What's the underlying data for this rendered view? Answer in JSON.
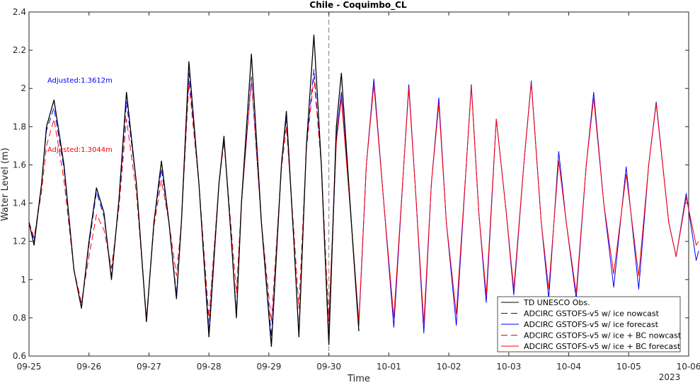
{
  "chart_data": {
    "type": "line",
    "title": "Chile - Coquimbo_CL",
    "xlabel": "Time",
    "ylabel": "Water Level (m)",
    "xlim": [
      "2023-09-25 00:00",
      "2023-10-06 00:00"
    ],
    "ylim": [
      0.6,
      2.4
    ],
    "x_ticks": [
      "09-25",
      "09-26",
      "09-27",
      "09-28",
      "09-29",
      "09-30",
      "10-01",
      "10-02",
      "10-03",
      "10-04",
      "10-05",
      "10-06"
    ],
    "y_ticks": [
      "0.6",
      "0.8",
      "1",
      "1.2",
      "1.4",
      "1.6",
      "1.8",
      "2",
      "2.2",
      "2.4"
    ],
    "year_label": "2023",
    "nowcast_end": "2023-09-30 00:00",
    "grid": false,
    "legend_position": "bottom-right",
    "annotations": [
      {
        "text": "Adjusted:1.3612m",
        "color": "#0000ff"
      },
      {
        "text": "Adjusted:1.3044m",
        "color": "#ff0000"
      }
    ],
    "series": [
      {
        "name": "TD UNESCO Obs.",
        "color": "#000000",
        "style": "solid",
        "points": [
          [
            "09-25 00:00",
            1.3
          ],
          [
            "09-25 02:00",
            1.18
          ],
          [
            "09-25 05:00",
            1.5
          ],
          [
            "09-25 07:00",
            1.8
          ],
          [
            "09-25 10:00",
            1.94
          ],
          [
            "09-25 14:00",
            1.6
          ],
          [
            "09-25 18:00",
            1.05
          ],
          [
            "09-25 21:00",
            0.85
          ],
          [
            "09-26 00:00",
            1.2
          ],
          [
            "09-26 03:00",
            1.48
          ],
          [
            "09-26 06:00",
            1.35
          ],
          [
            "09-26 09:00",
            1.0
          ],
          [
            "09-26 12:00",
            1.42
          ],
          [
            "09-26 15:00",
            1.98
          ],
          [
            "09-26 19:00",
            1.5
          ],
          [
            "09-26 23:00",
            0.78
          ],
          [
            "09-27 02:00",
            1.3
          ],
          [
            "09-27 05:00",
            1.62
          ],
          [
            "09-27 08:00",
            1.3
          ],
          [
            "09-27 11:00",
            0.9
          ],
          [
            "09-27 13:00",
            1.3
          ],
          [
            "09-27 16:00",
            2.14
          ],
          [
            "09-27 20:00",
            1.5
          ],
          [
            "09-28 00:00",
            0.7
          ],
          [
            "09-28 04:00",
            1.5
          ],
          [
            "09-28 06:00",
            1.75
          ],
          [
            "09-28 09:00",
            1.2
          ],
          [
            "09-28 11:00",
            0.8
          ],
          [
            "09-28 13:00",
            1.4
          ],
          [
            "09-28 17:00",
            2.18
          ],
          [
            "09-28 21:00",
            1.3
          ],
          [
            "09-29 01:00",
            0.65
          ],
          [
            "09-29 05:00",
            1.6
          ],
          [
            "09-29 07:00",
            1.88
          ],
          [
            "09-29 10:00",
            1.2
          ],
          [
            "09-29 12:00",
            0.7
          ],
          [
            "09-29 15:00",
            1.7
          ],
          [
            "09-29 18:00",
            2.28
          ],
          [
            "09-29 21:00",
            1.6
          ],
          [
            "09-30 00:00",
            0.66
          ],
          [
            "09-30 03:00",
            1.8
          ],
          [
            "09-30 05:00",
            2.08
          ],
          [
            "09-30 09:00",
            1.3
          ],
          [
            "09-30 12:00",
            0.73
          ]
        ]
      },
      {
        "name": "ADCIRC GSTOFS-v5 w/ ice nowcast",
        "color": "#0000ff",
        "style": "dashed",
        "points": [
          [
            "09-25 00:00",
            1.3
          ],
          [
            "09-25 02:00",
            1.2
          ],
          [
            "09-25 05:00",
            1.5
          ],
          [
            "09-25 07:00",
            1.78
          ],
          [
            "09-25 10:00",
            1.9
          ],
          [
            "09-25 14:00",
            1.58
          ],
          [
            "09-25 18:00",
            1.05
          ],
          [
            "09-25 21:00",
            0.86
          ],
          [
            "09-26 00:00",
            1.18
          ],
          [
            "09-26 03:00",
            1.46
          ],
          [
            "09-26 06:00",
            1.33
          ],
          [
            "09-26 09:00",
            1.02
          ],
          [
            "09-26 12:00",
            1.4
          ],
          [
            "09-26 15:00",
            1.93
          ],
          [
            "09-26 19:00",
            1.5
          ],
          [
            "09-26 23:00",
            0.78
          ],
          [
            "09-27 02:00",
            1.3
          ],
          [
            "09-27 05:00",
            1.58
          ],
          [
            "09-27 08:00",
            1.3
          ],
          [
            "09-27 11:00",
            0.92
          ],
          [
            "09-27 13:00",
            1.3
          ],
          [
            "09-27 16:00",
            2.08
          ],
          [
            "09-27 20:00",
            1.5
          ],
          [
            "09-28 00:00",
            0.74
          ],
          [
            "09-28 04:00",
            1.5
          ],
          [
            "09-28 06:00",
            1.74
          ],
          [
            "09-28 09:00",
            1.2
          ],
          [
            "09-28 11:00",
            0.82
          ],
          [
            "09-28 13:00",
            1.4
          ],
          [
            "09-28 17:00",
            2.06
          ],
          [
            "09-28 21:00",
            1.3
          ],
          [
            "09-29 01:00",
            0.7
          ],
          [
            "09-29 05:00",
            1.6
          ],
          [
            "09-29 07:00",
            1.85
          ],
          [
            "09-29 10:00",
            1.2
          ],
          [
            "09-29 12:00",
            0.72
          ],
          [
            "09-29 15:00",
            1.7
          ],
          [
            "09-29 18:00",
            2.1
          ],
          [
            "09-29 21:00",
            1.6
          ],
          [
            "09-30 00:00",
            0.68
          ]
        ]
      },
      {
        "name": "ADCIRC GSTOFS-v5 w/ ice forecast",
        "color": "#0000ff",
        "style": "solid",
        "points": [
          [
            "09-30 00:00",
            0.68
          ],
          [
            "09-30 03:00",
            1.75
          ],
          [
            "09-30 05:00",
            1.98
          ],
          [
            "09-30 09:00",
            1.3
          ],
          [
            "09-30 12:00",
            0.76
          ],
          [
            "09-30 15:00",
            1.6
          ],
          [
            "09-30 18:00",
            2.05
          ],
          [
            "09-30 22:00",
            1.4
          ],
          [
            "10-01 02:00",
            0.75
          ],
          [
            "10-01 06:00",
            1.6
          ],
          [
            "10-01 08:00",
            2.02
          ],
          [
            "10-01 11:00",
            1.4
          ],
          [
            "10-01 14:00",
            0.72
          ],
          [
            "10-01 17:00",
            1.5
          ],
          [
            "10-01 20:00",
            1.95
          ],
          [
            "10-01 23:00",
            1.3
          ],
          [
            "10-02 03:00",
            0.76
          ],
          [
            "10-02 07:00",
            1.6
          ],
          [
            "10-02 09:00",
            2.02
          ],
          [
            "10-02 12:00",
            1.35
          ],
          [
            "10-02 15:00",
            0.88
          ],
          [
            "10-02 19:00",
            1.84
          ],
          [
            "10-02 23:00",
            1.35
          ],
          [
            "10-03 02:00",
            0.92
          ],
          [
            "10-03 06:00",
            1.6
          ],
          [
            "10-03 09:00",
            2.04
          ],
          [
            "10-03 13:00",
            1.3
          ],
          [
            "10-03 16:00",
            0.9
          ],
          [
            "10-03 20:00",
            1.67
          ],
          [
            "10-03 23:00",
            1.3
          ],
          [
            "10-04 03:00",
            0.9
          ],
          [
            "10-04 07:00",
            1.6
          ],
          [
            "10-04 10:00",
            1.98
          ],
          [
            "10-04 14:00",
            1.4
          ],
          [
            "10-04 18:00",
            0.96
          ],
          [
            "10-04 23:00",
            1.59
          ],
          [
            "10-05 04:00",
            0.95
          ],
          [
            "10-05 08:00",
            1.6
          ],
          [
            "10-05 11:00",
            1.93
          ],
          [
            "10-05 16:00",
            1.3
          ],
          [
            "10-05 19:00",
            1.12
          ],
          [
            "10-05 23:00",
            1.45
          ],
          [
            "10-06 03:00",
            1.1
          ],
          [
            "10-06 04:00",
            1.15
          ]
        ]
      },
      {
        "name": "ADCIRC GSTOFS-v5 w/ ice + BC nowcast",
        "color": "#ff0000",
        "style": "dashed",
        "points": [
          [
            "09-25 00:00",
            1.3
          ],
          [
            "09-25 02:00",
            1.22
          ],
          [
            "09-25 05:00",
            1.46
          ],
          [
            "09-25 07:00",
            1.7
          ],
          [
            "09-25 10:00",
            1.84
          ],
          [
            "09-25 14:00",
            1.52
          ],
          [
            "09-25 18:00",
            1.05
          ],
          [
            "09-25 21:00",
            0.88
          ],
          [
            "09-26 00:00",
            1.12
          ],
          [
            "09-26 03:00",
            1.34
          ],
          [
            "09-26 06:00",
            1.26
          ],
          [
            "09-26 09:00",
            1.06
          ],
          [
            "09-26 12:00",
            1.38
          ],
          [
            "09-26 15:00",
            1.84
          ],
          [
            "09-26 19:00",
            1.45
          ],
          [
            "09-26 23:00",
            0.8
          ],
          [
            "09-27 02:00",
            1.28
          ],
          [
            "09-27 05:00",
            1.52
          ],
          [
            "09-27 08:00",
            1.3
          ],
          [
            "09-27 11:00",
            1.02
          ],
          [
            "09-27 13:00",
            1.3
          ],
          [
            "09-27 16:00",
            2.03
          ],
          [
            "09-27 20:00",
            1.5
          ],
          [
            "09-28 00:00",
            0.8
          ],
          [
            "09-28 04:00",
            1.5
          ],
          [
            "09-28 06:00",
            1.72
          ],
          [
            "09-28 09:00",
            1.25
          ],
          [
            "09-28 11:00",
            0.93
          ],
          [
            "09-28 13:00",
            1.4
          ],
          [
            "09-28 17:00",
            2.04
          ],
          [
            "09-28 21:00",
            1.3
          ],
          [
            "09-29 01:00",
            0.78
          ],
          [
            "09-29 05:00",
            1.58
          ],
          [
            "09-29 07:00",
            1.8
          ],
          [
            "09-29 10:00",
            1.25
          ],
          [
            "09-29 12:00",
            0.85
          ],
          [
            "09-29 15:00",
            1.68
          ],
          [
            "09-29 18:00",
            2.06
          ],
          [
            "09-29 21:00",
            1.6
          ],
          [
            "09-30 00:00",
            0.78
          ]
        ]
      },
      {
        "name": "ADCIRC GSTOFS-v5 w/ ice + BC forecast",
        "color": "#ff0000",
        "style": "solid",
        "points": [
          [
            "09-30 00:00",
            0.78
          ],
          [
            "09-30 03:00",
            1.72
          ],
          [
            "09-30 05:00",
            1.95
          ],
          [
            "09-30 09:00",
            1.3
          ],
          [
            "09-30 12:00",
            0.78
          ],
          [
            "09-30 15:00",
            1.6
          ],
          [
            "09-30 18:00",
            2.02
          ],
          [
            "09-30 22:00",
            1.4
          ],
          [
            "10-01 02:00",
            0.8
          ],
          [
            "10-01 06:00",
            1.6
          ],
          [
            "10-01 08:00",
            2.0
          ],
          [
            "10-01 11:00",
            1.4
          ],
          [
            "10-01 14:00",
            0.77
          ],
          [
            "10-01 17:00",
            1.5
          ],
          [
            "10-01 20:00",
            1.92
          ],
          [
            "10-01 23:00",
            1.3
          ],
          [
            "10-02 03:00",
            0.82
          ],
          [
            "10-02 07:00",
            1.6
          ],
          [
            "10-02 09:00",
            2.01
          ],
          [
            "10-02 12:00",
            1.35
          ],
          [
            "10-02 15:00",
            0.92
          ],
          [
            "10-02 19:00",
            1.84
          ],
          [
            "10-02 23:00",
            1.35
          ],
          [
            "10-03 02:00",
            0.95
          ],
          [
            "10-03 06:00",
            1.6
          ],
          [
            "10-03 09:00",
            2.03
          ],
          [
            "10-03 13:00",
            1.3
          ],
          [
            "10-03 16:00",
            0.95
          ],
          [
            "10-03 20:00",
            1.62
          ],
          [
            "10-03 23:00",
            1.3
          ],
          [
            "10-04 03:00",
            0.93
          ],
          [
            "10-04 07:00",
            1.6
          ],
          [
            "10-04 10:00",
            1.95
          ],
          [
            "10-04 14:00",
            1.4
          ],
          [
            "10-04 18:00",
            1.03
          ],
          [
            "10-04 23:00",
            1.55
          ],
          [
            "10-05 04:00",
            1.02
          ],
          [
            "10-05 08:00",
            1.6
          ],
          [
            "10-05 11:00",
            1.92
          ],
          [
            "10-05 16:00",
            1.3
          ],
          [
            "10-05 19:00",
            1.12
          ],
          [
            "10-05 23:00",
            1.43
          ],
          [
            "10-06 03:00",
            1.18
          ],
          [
            "10-06 04:00",
            1.2
          ]
        ]
      }
    ]
  }
}
